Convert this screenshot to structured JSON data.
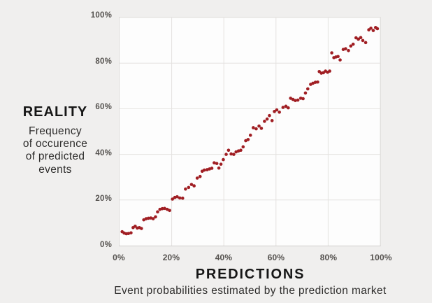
{
  "chart_data": {
    "type": "scatter",
    "title": "",
    "x": {
      "label": "PREDICTIONS",
      "sublabel": "Event probabilities estimated by the prediction market",
      "ticks": [
        "0%",
        "20%",
        "40%",
        "60%",
        "80%",
        "100%"
      ],
      "range": [
        0,
        100
      ]
    },
    "y": {
      "label": "REALITY",
      "sublabel_lines": [
        "Frequency",
        "of occurence",
        "of predicted",
        "events"
      ],
      "ticks": [
        "0%",
        "20%",
        "40%",
        "60%",
        "80%",
        "100%"
      ],
      "range": [
        0,
        100
      ]
    },
    "grid": true,
    "legend": false,
    "colors": {
      "point": "#a01e23",
      "grid": "#e4e2e0",
      "plot_background": "#fdfdfd",
      "page_background": "#f0efee",
      "tick_text": "#55524f",
      "title_text": "#161616"
    },
    "points": [
      [
        1.0,
        6.1
      ],
      [
        1.8,
        5.5
      ],
      [
        2.6,
        5.2
      ],
      [
        3.4,
        5.3
      ],
      [
        4.4,
        5.6
      ],
      [
        5.2,
        7.9
      ],
      [
        6.0,
        8.5
      ],
      [
        6.8,
        7.7
      ],
      [
        7.6,
        7.9
      ],
      [
        8.4,
        7.5
      ],
      [
        9.3,
        11.3
      ],
      [
        10.2,
        11.8
      ],
      [
        11.1,
        12.0
      ],
      [
        12.0,
        12.1
      ],
      [
        12.9,
        11.8
      ],
      [
        13.8,
        12.6
      ],
      [
        14.6,
        14.8
      ],
      [
        15.5,
        15.9
      ],
      [
        16.4,
        16.2
      ],
      [
        17.3,
        16.3
      ],
      [
        18.3,
        15.9
      ],
      [
        19.2,
        15.4
      ],
      [
        20.3,
        20.4
      ],
      [
        21.2,
        21.1
      ],
      [
        22.1,
        21.4
      ],
      [
        23.1,
        20.9
      ],
      [
        24.2,
        20.8
      ],
      [
        25.3,
        24.8
      ],
      [
        26.5,
        25.5
      ],
      [
        27.6,
        26.8
      ],
      [
        28.6,
        26.2
      ],
      [
        29.8,
        29.6
      ],
      [
        30.9,
        30.3
      ],
      [
        31.7,
        32.6
      ],
      [
        32.5,
        33.1
      ],
      [
        33.6,
        33.3
      ],
      [
        34.5,
        33.6
      ],
      [
        35.4,
        33.9
      ],
      [
        36.3,
        36.3
      ],
      [
        37.3,
        36.0
      ],
      [
        38.1,
        34.0
      ],
      [
        38.9,
        35.7
      ],
      [
        39.8,
        37.7
      ],
      [
        40.9,
        40.0
      ],
      [
        41.8,
        41.8
      ],
      [
        42.8,
        40.2
      ],
      [
        43.8,
        40.0
      ],
      [
        44.7,
        41.1
      ],
      [
        45.6,
        41.5
      ],
      [
        46.5,
        41.8
      ],
      [
        47.4,
        43.3
      ],
      [
        48.4,
        46.0
      ],
      [
        49.3,
        46.5
      ],
      [
        50.2,
        48.4
      ],
      [
        51.3,
        51.7
      ],
      [
        52.4,
        51.2
      ],
      [
        53.5,
        52.4
      ],
      [
        54.4,
        51.4
      ],
      [
        55.6,
        54.5
      ],
      [
        56.6,
        55.5
      ],
      [
        57.5,
        57.0
      ],
      [
        58.5,
        54.8
      ],
      [
        59.4,
        58.8
      ],
      [
        60.3,
        59.5
      ],
      [
        61.3,
        58.5
      ],
      [
        62.7,
        60.6
      ],
      [
        63.8,
        61.1
      ],
      [
        64.7,
        60.4
      ],
      [
        65.6,
        64.6
      ],
      [
        66.5,
        64.1
      ],
      [
        67.4,
        63.6
      ],
      [
        68.4,
        63.8
      ],
      [
        69.5,
        64.6
      ],
      [
        70.4,
        64.4
      ],
      [
        71.3,
        66.9
      ],
      [
        72.2,
        68.7
      ],
      [
        73.3,
        70.7
      ],
      [
        74.2,
        71.2
      ],
      [
        75.1,
        71.6
      ],
      [
        76.0,
        71.7
      ],
      [
        76.6,
        76.3
      ],
      [
        77.4,
        75.6
      ],
      [
        78.2,
        75.8
      ],
      [
        79.0,
        76.5
      ],
      [
        79.8,
        76.0
      ],
      [
        80.6,
        76.5
      ],
      [
        81.4,
        84.5
      ],
      [
        82.2,
        82.4
      ],
      [
        83.0,
        82.7
      ],
      [
        83.8,
        82.9
      ],
      [
        84.6,
        81.4
      ],
      [
        85.8,
        86.0
      ],
      [
        86.7,
        86.3
      ],
      [
        87.8,
        85.5
      ],
      [
        88.7,
        87.5
      ],
      [
        89.6,
        88.3
      ],
      [
        90.7,
        91.1
      ],
      [
        91.6,
        90.5
      ],
      [
        92.5,
        91.2
      ],
      [
        93.3,
        89.9
      ],
      [
        94.4,
        89.0
      ],
      [
        95.6,
        94.6
      ],
      [
        96.4,
        95.3
      ],
      [
        97.3,
        94.3
      ],
      [
        98.2,
        95.6
      ],
      [
        98.9,
        95.1
      ]
    ]
  }
}
